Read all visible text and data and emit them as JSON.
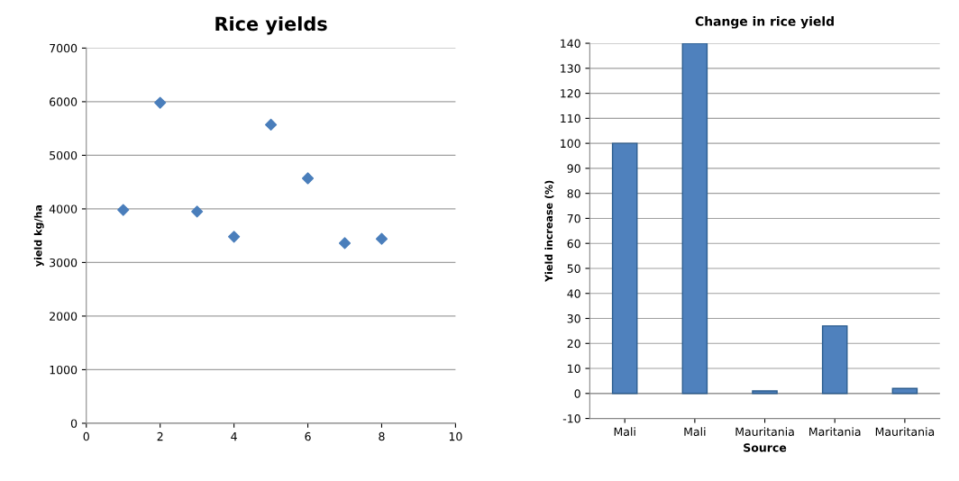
{
  "chart_data": [
    {
      "type": "scatter",
      "title": "Rice yields",
      "ylabel": "yield kg/ha",
      "x": [
        1,
        2,
        3,
        4,
        5,
        6,
        7,
        8
      ],
      "series": [
        {
          "color": "#4a7ebb",
          "values": [
            3980,
            5980,
            3950,
            3480,
            5570,
            4570,
            3360,
            3440
          ]
        }
      ],
      "xlim": [
        0,
        10
      ],
      "xticks": [
        0,
        2,
        4,
        6,
        8,
        10
      ],
      "ylim": [
        0,
        7000
      ],
      "yticks": [
        0,
        1000,
        2000,
        3000,
        4000,
        5000,
        6000,
        7000
      ],
      "grid": "y",
      "marker": "diamond",
      "legend": false
    },
    {
      "type": "bar",
      "title": "Change in rice yield",
      "xlabel": "Source",
      "ylabel": "Yield increase (%)",
      "categories": [
        "Mali",
        "Mali",
        "Mauritania",
        "Maritania",
        "Mauritania"
      ],
      "series": [
        {
          "color": "#4f81bd",
          "values": [
            100,
            140,
            1,
            27,
            2
          ]
        }
      ],
      "ylim": [
        -10,
        140
      ],
      "yticks": [
        -10,
        0,
        10,
        20,
        30,
        40,
        50,
        60,
        70,
        80,
        90,
        100,
        110,
        120,
        130,
        140
      ],
      "grid": "y",
      "legend": false
    }
  ]
}
